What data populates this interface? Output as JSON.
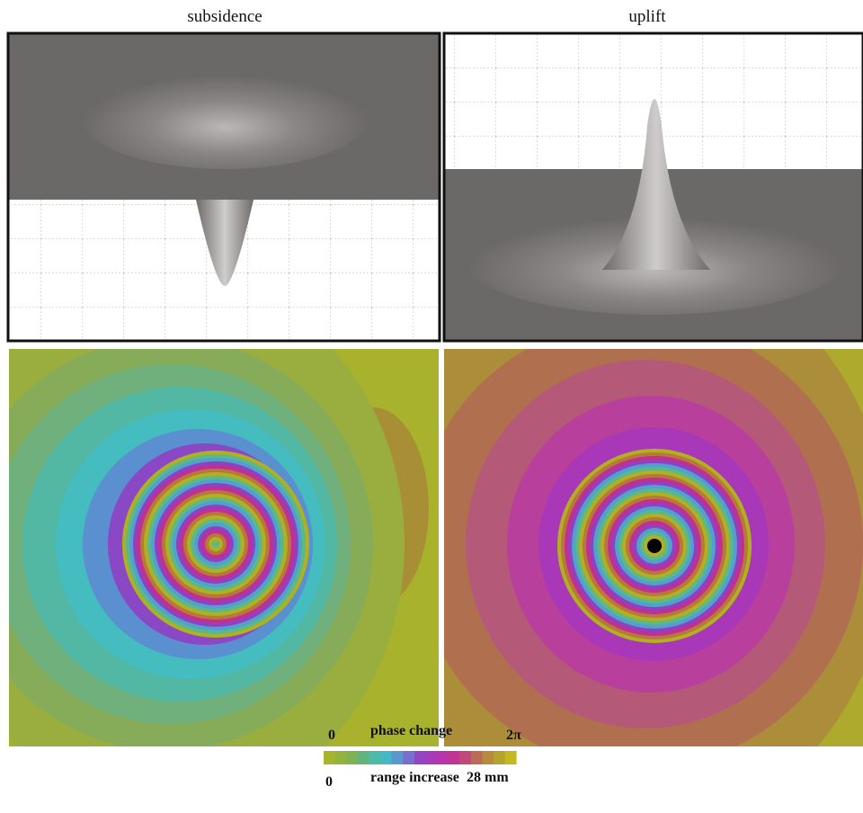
{
  "panels": {
    "left_title": "subsidence",
    "right_title": "uplift"
  },
  "colorbar": {
    "top_start": "0",
    "top_label": "phase change",
    "top_end": "2π",
    "bottom_start": "0",
    "bottom_label": "range increase",
    "bottom_end": "28 mm"
  }
}
